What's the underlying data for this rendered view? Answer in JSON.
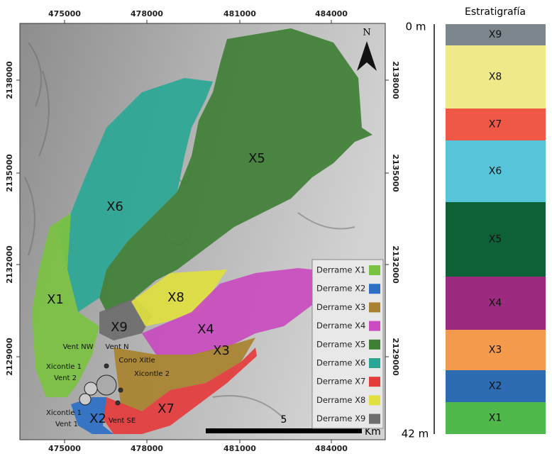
{
  "map": {
    "x_ticks": [
      "475000",
      "478000",
      "481000",
      "484000"
    ],
    "y_ticks": [
      "2138000",
      "2135000",
      "2132000",
      "2129000"
    ],
    "north": "N",
    "scale_bar": {
      "label": "5",
      "unit": "Km"
    },
    "flow_labels": [
      "X1",
      "X2",
      "X3",
      "X4",
      "X5",
      "X6",
      "X7",
      "X8",
      "X9"
    ],
    "vent_labels": [
      "Vent NW",
      "Vent N",
      "Cono Xitle",
      "Xicontle 1",
      "Vent 2",
      "Xicontle 2",
      "Xicontle 1",
      "Vent 1",
      "Vent SE"
    ]
  },
  "legend": [
    {
      "label": "Derrame X1",
      "color": "#7cc242"
    },
    {
      "label": "Derrame X2",
      "color": "#2c6fc4"
    },
    {
      "label": "Derrame X3",
      "color": "#a8822e"
    },
    {
      "label": "Derrame X4",
      "color": "#c94bbf"
    },
    {
      "label": "Derrame X5",
      "color": "#3f7f35"
    },
    {
      "label": "Derrame X6",
      "color": "#2aa796"
    },
    {
      "label": "Derrame X7",
      "color": "#e43b3b"
    },
    {
      "label": "Derrame X8",
      "color": "#e0e040"
    },
    {
      "label": "Derrame X9",
      "color": "#6d6d6d"
    }
  ],
  "stratigraphy": {
    "title": "Estratigrafía",
    "top": "0 m",
    "bottom": "42 m",
    "units": [
      {
        "label": "X9",
        "color": "#7b868d"
      },
      {
        "label": "X8",
        "color": "#efe98a"
      },
      {
        "label": "X7",
        "color": "#ef5845"
      },
      {
        "label": "X6",
        "color": "#57c5d9"
      },
      {
        "label": "X5",
        "color": "#0e6136"
      },
      {
        "label": "X4",
        "color": "#9c2a7e"
      },
      {
        "label": "X3",
        "color": "#f49a4d"
      },
      {
        "label": "X2",
        "color": "#2d6cb2"
      },
      {
        "label": "X1",
        "color": "#50b94c"
      }
    ]
  }
}
